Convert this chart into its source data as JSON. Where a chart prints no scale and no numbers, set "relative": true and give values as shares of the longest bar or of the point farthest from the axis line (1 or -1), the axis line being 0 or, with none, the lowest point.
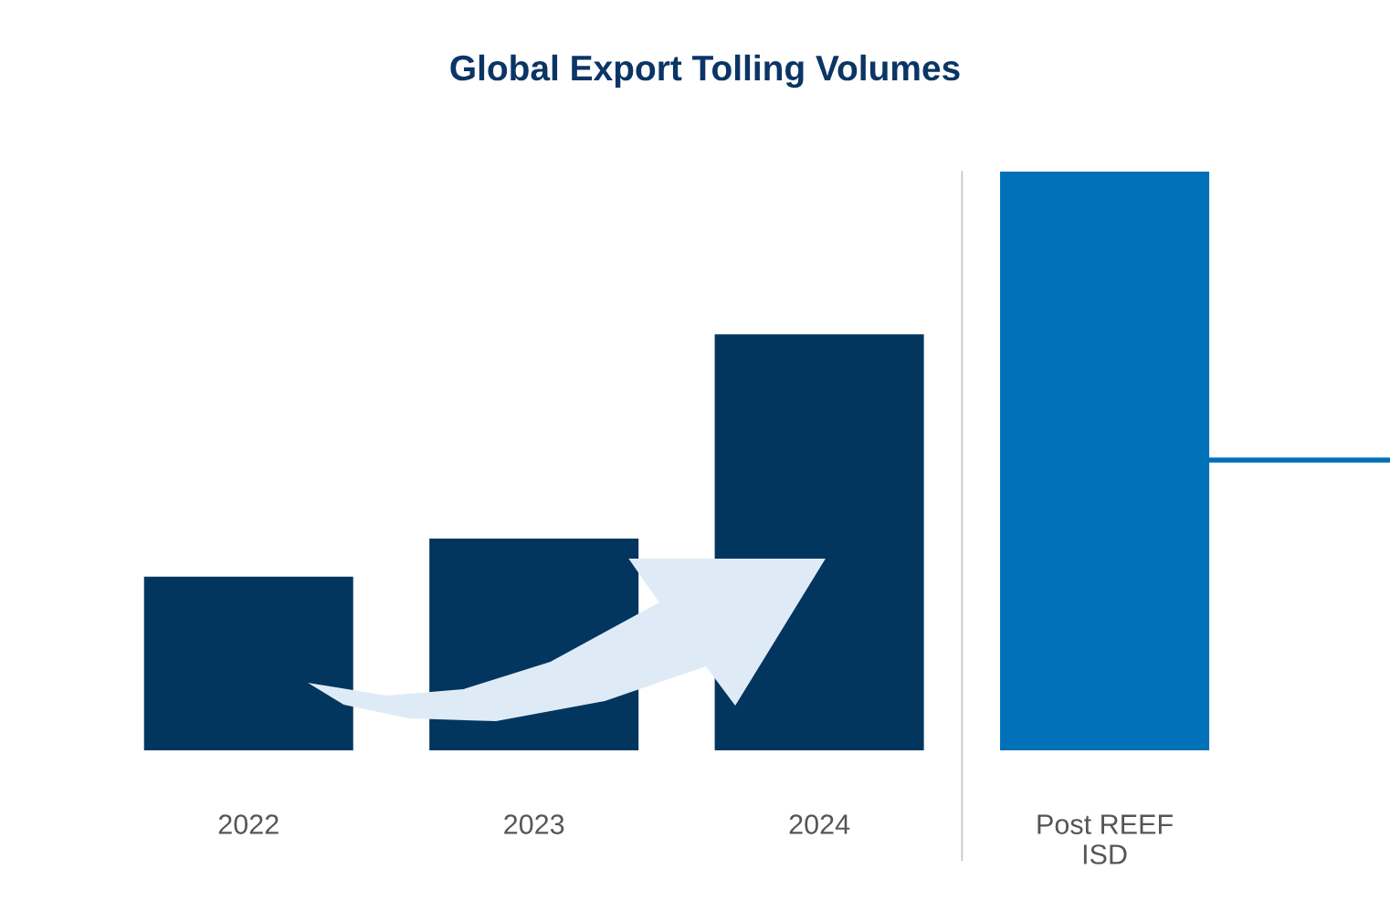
{
  "chart_data": {
    "type": "bar",
    "title": "Global Export Tolling Volumes",
    "relative": true,
    "categories": [
      "2022",
      "2023",
      "2024",
      "Post REEF\nISD"
    ],
    "values": [
      0.3,
      0.366,
      0.719,
      1
    ],
    "colors": [
      "#02365f",
      "#02365f",
      "#02365f",
      "#0070b8"
    ]
  }
}
